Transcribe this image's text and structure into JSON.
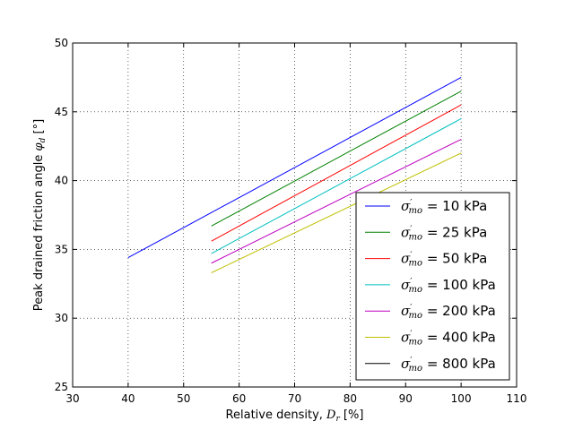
{
  "chart_data": {
    "type": "line",
    "xlabel": "Relative density, D_r [%]",
    "ylabel": "Peak drained friction angle φ_d [°]",
    "xlabel_parts": {
      "prefix": "Relative density, ",
      "symbol": "D",
      "subscript": "r",
      "suffix": " [%]"
    },
    "ylabel_parts": {
      "prefix": "Peak drained friction angle ",
      "symbol": "φ",
      "subscript": "d",
      "suffix": " [°]"
    },
    "xlim": [
      30,
      110
    ],
    "ylim": [
      25,
      50
    ],
    "xticks": [
      30,
      40,
      50,
      60,
      70,
      80,
      90,
      100,
      110
    ],
    "yticks": [
      25,
      30,
      35,
      40,
      45,
      50
    ],
    "grid": true,
    "legend_position": "lower-right",
    "series": [
      {
        "name": "σ'_mo = 10 kPa",
        "label_value": "= 10 kPa",
        "color": "#0000ff",
        "x": [
          40,
          100
        ],
        "y": [
          34.4,
          47.5
        ]
      },
      {
        "name": "σ'_mo = 25 kPa",
        "label_value": "= 25 kPa",
        "color": "#008000",
        "x": [
          55,
          100
        ],
        "y": [
          36.7,
          46.5
        ]
      },
      {
        "name": "σ'_mo = 50 kPa",
        "label_value": "= 50 kPa",
        "color": "#ff0000",
        "x": [
          55,
          100
        ],
        "y": [
          35.6,
          45.5
        ]
      },
      {
        "name": "σ'_mo = 100 kPa",
        "label_value": "= 100 kPa",
        "color": "#00bfbf",
        "x": [
          55,
          100
        ],
        "y": [
          34.7,
          44.5
        ]
      },
      {
        "name": "σ'_mo = 200 kPa",
        "label_value": "= 200 kPa",
        "color": "#bf00bf",
        "x": [
          55,
          100
        ],
        "y": [
          34.0,
          43.0
        ]
      },
      {
        "name": "σ'_mo = 400 kPa",
        "label_value": "= 400 kPa",
        "color": "#bfbf00",
        "x": [
          55,
          100
        ],
        "y": [
          33.3,
          42.0
        ]
      },
      {
        "name": "σ'_mo = 800 kPa",
        "label_value": "= 800 kPa",
        "color": "#000000",
        "x": [],
        "y": []
      }
    ]
  }
}
